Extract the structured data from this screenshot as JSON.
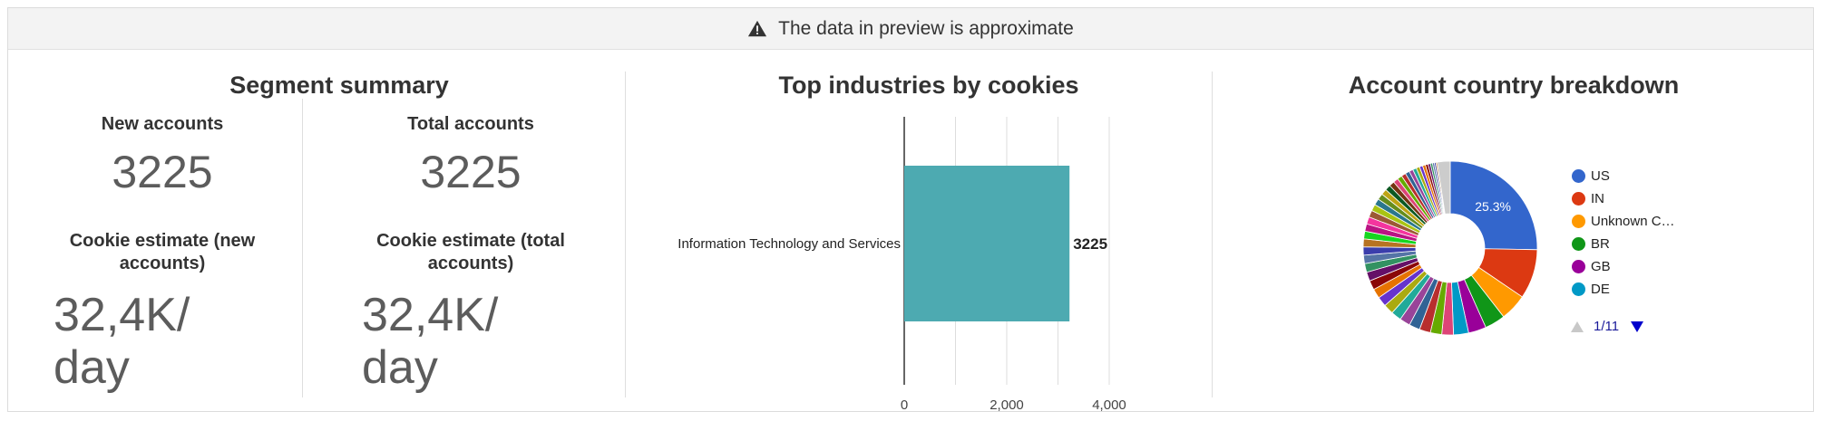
{
  "banner": {
    "icon": "warning-icon",
    "text": "The data in preview is approximate"
  },
  "segment_summary": {
    "title": "Segment summary",
    "new_accounts_label": "New accounts",
    "new_accounts_value": "3225",
    "total_accounts_label": "Total accounts",
    "total_accounts_value": "3225",
    "cookie_new_label_line1": "Cookie estimate (new",
    "cookie_new_label_line2": "accounts)",
    "cookie_new_value_line1": "32,4K/",
    "cookie_new_value_line2": "day",
    "cookie_total_label_line1": "Cookie estimate (total",
    "cookie_total_label_line2": "accounts)",
    "cookie_total_value_line1": "32,4K/",
    "cookie_total_value_line2": "day"
  },
  "industries": {
    "title": "Top industries by cookies"
  },
  "countries": {
    "title": "Account country breakdown",
    "legend": [
      {
        "label": "US",
        "color": "#3366cc"
      },
      {
        "label": "IN",
        "color": "#dc3912"
      },
      {
        "label": "Unknown C…",
        "color": "#ff9900"
      },
      {
        "label": "BR",
        "color": "#109618"
      },
      {
        "label": "GB",
        "color": "#990099"
      },
      {
        "label": "DE",
        "color": "#0099c6"
      }
    ],
    "pager": "1/11"
  },
  "chart_data": [
    {
      "type": "bar",
      "orientation": "horizontal",
      "title": "Top industries by cookies",
      "categories": [
        "Information Technology and Services"
      ],
      "values": [
        3225
      ],
      "data_labels": [
        "3225"
      ],
      "xlim": [
        0,
        4000
      ],
      "x_ticks": [
        "0",
        "2,000",
        "4,000"
      ],
      "grid": true,
      "color": "#4daab1"
    },
    {
      "type": "pie",
      "donut": true,
      "title": "Account country breakdown",
      "labels": [
        "US",
        "IN",
        "Unknown C…",
        "BR",
        "GB",
        "DE"
      ],
      "values": [
        25.3,
        9.2,
        5.0,
        3.8,
        3.3,
        2.8
      ],
      "slice_label": "25.3%",
      "legend": "right",
      "pages": "1/11"
    }
  ]
}
